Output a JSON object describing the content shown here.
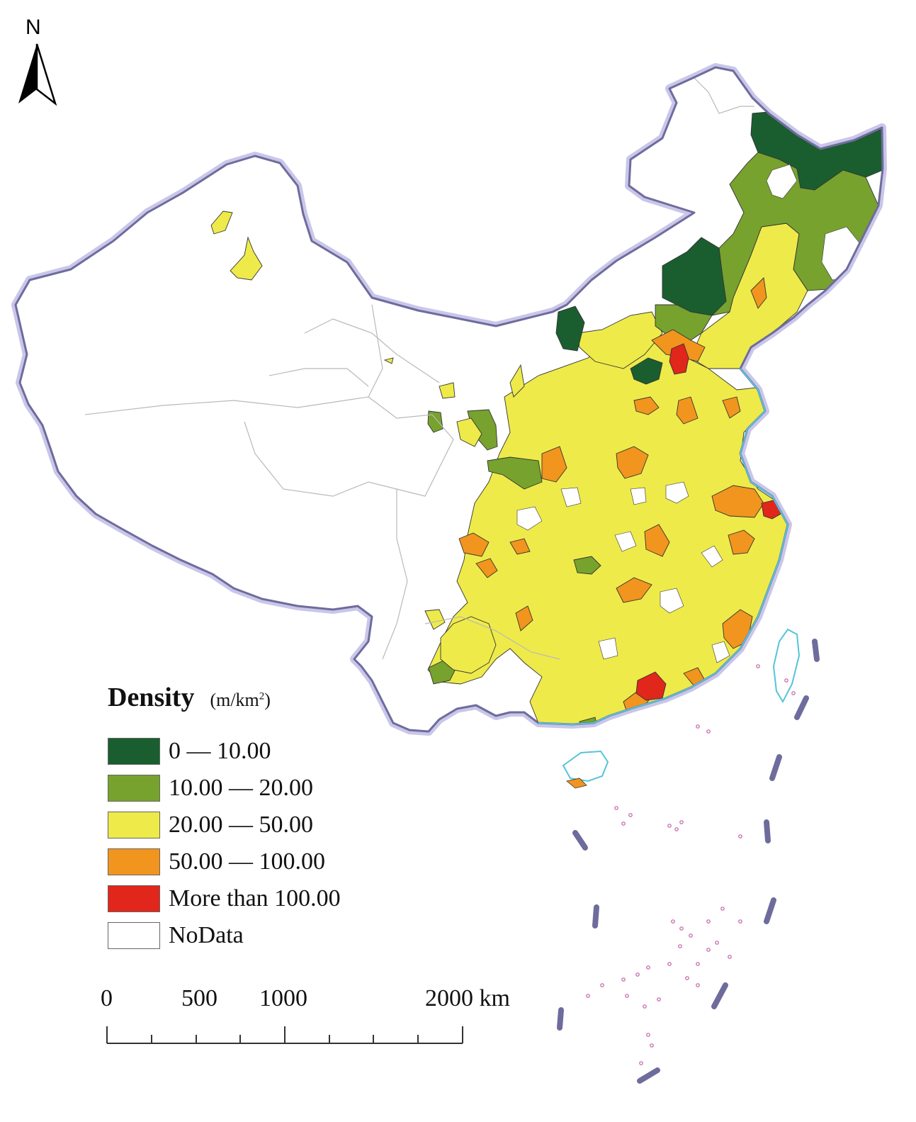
{
  "north_arrow": {
    "label": "N"
  },
  "legend": {
    "title": "Density",
    "unit_prefix": "(m/km",
    "unit_sup": "2",
    "unit_suffix": ")",
    "items": [
      {
        "label": "0 — 10.00",
        "color": "#1a5e2f"
      },
      {
        "label": "10.00 — 20.00",
        "color": "#77a22e"
      },
      {
        "label": "20.00 — 50.00",
        "color": "#eeea4a"
      },
      {
        "label": "50.00 — 100.00",
        "color": "#f1951e"
      },
      {
        "label": "More than 100.00",
        "color": "#e1261c"
      },
      {
        "label": "NoData",
        "color": "#ffffff"
      }
    ]
  },
  "scale_bar": {
    "labels": [
      "0",
      "500",
      "1000",
      "2000 km"
    ],
    "values_km": [
      0,
      500,
      1000,
      2000
    ]
  },
  "colors": {
    "border": "#6e6c9c",
    "border_halo": "#c9c6ea",
    "province_line": "#b9b9b9",
    "region_line": "#333333",
    "coast": "#55c4d8",
    "islands": "#c25ca4"
  }
}
